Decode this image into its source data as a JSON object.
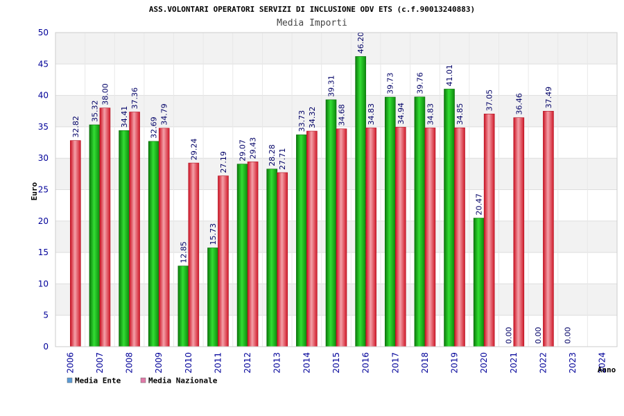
{
  "chart_data": {
    "type": "bar",
    "title": "ASS.VOLONTARI OPERATORI SERVIZI DI INCLUSIONE ODV ETS (c.f.90013240883)",
    "subtitle": "Media Importi",
    "xlabel": "Anno",
    "ylabel": "Euro",
    "ylim": [
      0,
      50
    ],
    "yticks": [
      "0",
      "5",
      "10",
      "15",
      "20",
      "25",
      "30",
      "35",
      "40",
      "45",
      "50"
    ],
    "grid": true,
    "legend_position": "bottom-left",
    "categories": [
      "2006",
      "2007",
      "2008",
      "2009",
      "2010",
      "2011",
      "2012",
      "2013",
      "2014",
      "2015",
      "2016",
      "2017",
      "2018",
      "2019",
      "2020",
      "2021",
      "2022",
      "2023",
      "2024"
    ],
    "series": [
      {
        "name": "Media Ente",
        "color": "#22bb22",
        "legend_color": "#5b9bd5",
        "values": [
          null,
          35.32,
          34.41,
          32.69,
          12.85,
          15.73,
          29.07,
          28.28,
          33.73,
          39.31,
          46.2,
          39.73,
          39.76,
          41.01,
          20.47,
          0.0,
          0.0,
          0.0,
          null
        ],
        "labels": [
          null,
          "35.32",
          "34.41",
          "32.69",
          "12.85",
          "15.73",
          "29.07",
          "28.28",
          "33.73",
          "39.31",
          "46.20",
          "39.73",
          "39.76",
          "41.01",
          "20.47",
          "0.00",
          "0.00",
          "0.00",
          null
        ]
      },
      {
        "name": "Media Nazionale",
        "color": "#ee3344",
        "legend_color": "#e07aa8",
        "values": [
          32.82,
          38.0,
          37.36,
          34.79,
          29.24,
          27.19,
          29.43,
          27.71,
          34.32,
          34.68,
          34.83,
          34.94,
          34.83,
          34.85,
          37.05,
          36.46,
          37.49,
          null,
          null
        ],
        "labels": [
          "32.82",
          "38.00",
          "37.36",
          "34.79",
          "29.24",
          "27.19",
          "29.43",
          "27.71",
          "34.32",
          "34.68",
          "34.83",
          "34.94",
          "34.83",
          "34.85",
          "37.05",
          "36.46",
          "37.49",
          null,
          null
        ]
      }
    ]
  }
}
